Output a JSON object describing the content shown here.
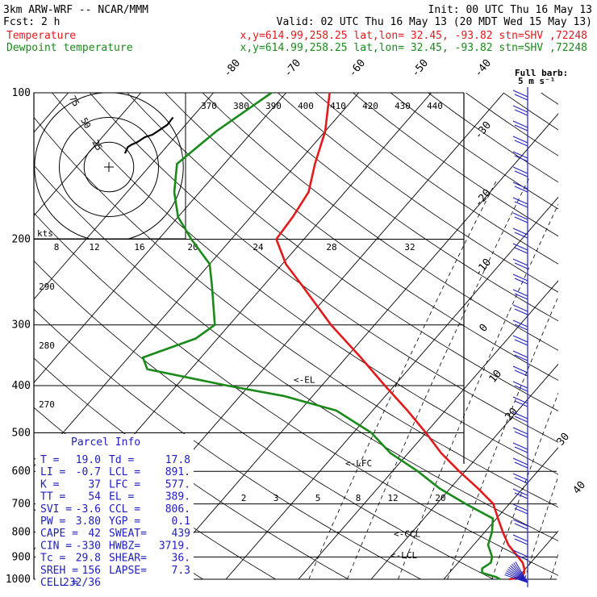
{
  "header": {
    "model": "3km ARW-WRF -- NCAR/MMM",
    "init": "Init: 00 UTC Thu 16 May 13",
    "fcst": "Fcst:    2 h",
    "valid": "Valid: 02 UTC Thu 16 May 13 (20 MDT Wed 15 May 13)",
    "temp_label": "Temperature",
    "dew_label": "Dewpoint temperature",
    "location": "x,y=614.99,258.25   lat,lon= 32.45, -93.82   stn=SHV ,72248"
  },
  "colors": {
    "temperature": "#e31a1c",
    "dewpoint": "#1a8a1a",
    "axes": "#000000",
    "barbs": "#2020c0"
  },
  "barb_legend": {
    "line1": "Full barb:",
    "line2": "5 m s⁻¹"
  },
  "hodograph": {
    "units": "kts",
    "ring_labels": [
      {
        "value": "25"
      },
      {
        "value": "50"
      },
      {
        "value": "75"
      }
    ]
  },
  "parcel": {
    "title": "Parcel Info",
    "rows": [
      [
        "T  =",
        "19.0",
        "Td =",
        "17.8"
      ],
      [
        "LI =",
        "-0.7",
        "LCL =",
        "891."
      ],
      [
        "K  =",
        "37",
        "LFC =",
        "577."
      ],
      [
        "TT =",
        "54",
        "EL  =",
        "389."
      ],
      [
        "SVI =",
        "-3.6",
        "CCL =",
        "806."
      ],
      [
        "PW =",
        "3.80",
        "YGP =",
        "0.1"
      ],
      [
        "CAPE =",
        "42",
        "SWEAT=",
        "439"
      ],
      [
        "CIN =",
        "-330",
        "HWBZ=",
        "3719."
      ],
      [
        "Tc =",
        "29.8",
        "SHEAR=",
        "36."
      ],
      [
        "SREH =",
        "156",
        "LAPSE=",
        "7.3"
      ],
      [
        "CELL =",
        "232/36",
        "",
        ""
      ]
    ]
  },
  "chart_data": {
    "type": "line",
    "pressure_levels": [
      100,
      200,
      300,
      400,
      500,
      600,
      700,
      800,
      900,
      1000
    ],
    "isotherm_labels": [
      "-80",
      "-70",
      "-60",
      "-50",
      "-40",
      "-30",
      "-20",
      "-10",
      "0",
      "10",
      "20",
      "30",
      "40"
    ],
    "theta_labels": [
      "370",
      "380",
      "390",
      "400",
      "410",
      "420",
      "430",
      "440"
    ],
    "theta_lower_labels": [
      "290",
      "280",
      "270"
    ],
    "mixing_ratio_labels": [
      "8",
      "12",
      "16",
      "20",
      "24",
      "28",
      "32"
    ],
    "mixing_ratio_lower_labels": [
      "2",
      "3",
      "5",
      "8",
      "12",
      "20"
    ],
    "level_markers": [
      "<-EL",
      "<-LFC",
      "<-CCL",
      "<-LCL"
    ],
    "series": [
      {
        "name": "Temperature",
        "pressure": [
          1000,
          990,
          970,
          950,
          925,
          900,
          850,
          800,
          750,
          700,
          650,
          600,
          550,
          500,
          450,
          400,
          350,
          300,
          250,
          225,
          200,
          180,
          160,
          140,
          120,
          100
        ],
        "values": [
          19.0,
          20.5,
          20.3,
          19.8,
          18.9,
          17.6,
          14.8,
          12.5,
          10.2,
          7.8,
          3.8,
          -0.8,
          -5.5,
          -10.0,
          -15.2,
          -21.3,
          -28.0,
          -36.0,
          -44.5,
          -49.5,
          -53.8,
          -54.2,
          -55.0,
          -57.5,
          -60.0,
          -64.0
        ]
      },
      {
        "name": "Dewpoint temperature",
        "pressure": [
          1000,
          990,
          970,
          950,
          925,
          900,
          850,
          800,
          750,
          700,
          650,
          600,
          550,
          500,
          450,
          420,
          400,
          370,
          350,
          320,
          300,
          250,
          225,
          200,
          180,
          160,
          140,
          120,
          100
        ],
        "values": [
          17.8,
          17.0,
          14.5,
          14.0,
          14.5,
          14.0,
          12.0,
          11.0,
          9.5,
          4.0,
          -1.5,
          -6.5,
          -12.5,
          -17.5,
          -25.0,
          -34.0,
          -43.0,
          -56.0,
          -58.0,
          -53.0,
          -52.0,
          -57.0,
          -60.0,
          -65.5,
          -70.0,
          -73.5,
          -76.5,
          -75.0,
          -72.0
        ]
      }
    ],
    "axes": {
      "pressure_range": [
        1000,
        100
      ],
      "temperature_range_at_1000": [
        -40,
        50
      ],
      "pressure_scale": "log"
    },
    "hodograph_trace_kts": [
      [
        17,
        11
      ],
      [
        20,
        16
      ],
      [
        24,
        18
      ],
      [
        30,
        20
      ],
      [
        38,
        24
      ],
      [
        46,
        26
      ],
      [
        54,
        30
      ],
      [
        62,
        34
      ],
      [
        68,
        40
      ]
    ]
  }
}
